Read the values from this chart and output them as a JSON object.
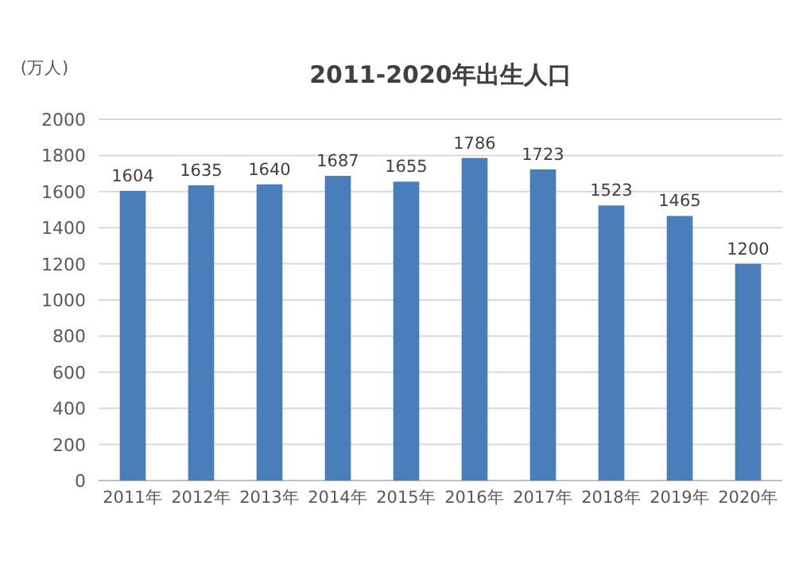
{
  "chart_data": {
    "type": "bar",
    "title": "2011-2020年出生人口",
    "ylabel": "(万人)",
    "categories": [
      "2011年",
      "2012年",
      "2013年",
      "2014年",
      "2015年",
      "2016年",
      "2017年",
      "2018年",
      "2019年",
      "2020年"
    ],
    "values": [
      1604,
      1635,
      1640,
      1687,
      1655,
      1786,
      1723,
      1523,
      1465,
      1200
    ],
    "color": "#4a7ebb",
    "ylim": [
      0,
      2000
    ],
    "yticks": [
      0,
      200,
      400,
      600,
      800,
      1000,
      1200,
      1400,
      1600,
      1800,
      2000
    ],
    "grid": "y",
    "data_labels": true
  }
}
